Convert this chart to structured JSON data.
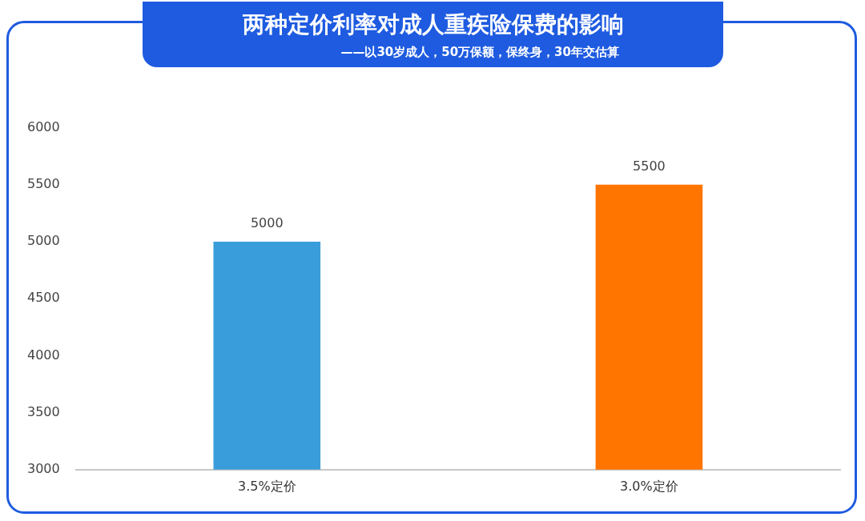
{
  "chart_data": {
    "type": "bar",
    "title": "两种定价利率对成人重疾险保费的影响",
    "subtitle": "——以30岁成人，50万保额，保终身，30年交估算",
    "categories": [
      "3.5%定价",
      "3.0%定价"
    ],
    "values": [
      5000,
      5500
    ],
    "colors": [
      "#3a9ddb",
      "#ff7500"
    ],
    "ylim": [
      3000,
      6000
    ],
    "yticks": [
      3000,
      3500,
      4000,
      4500,
      5000,
      5500,
      6000
    ],
    "grid": false,
    "legend": false,
    "data_labels": true
  }
}
